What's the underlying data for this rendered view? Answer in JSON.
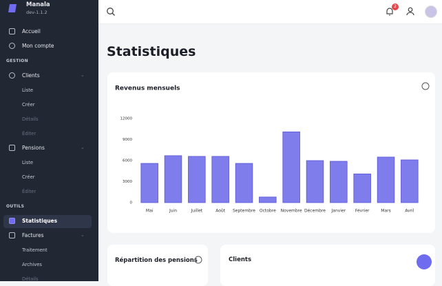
{
  "sidebar": {
    "app_name": "Manala",
    "version": "dev-1.1.2",
    "items": [
      "Accueil",
      "Mon compte"
    ],
    "gestion": {
      "heading": "GESTION",
      "groups": [
        {
          "label": "Clients",
          "children": [
            "Liste",
            "Créer",
            "Détails",
            "Éditer"
          ]
        },
        {
          "label": "Pensions",
          "children": [
            "Liste",
            "Créer",
            "Éditer"
          ]
        }
      ]
    },
    "outils": {
      "heading": "OUTILS",
      "items": [
        "Statistiques"
      ],
      "groups": [
        {
          "label": "Factures",
          "children": [
            "Traitement",
            "Archives",
            "Détails"
          ]
        }
      ]
    }
  },
  "header": {
    "notification_count": "2"
  },
  "page_title": "Statistiques",
  "cards": {
    "pensions": "Répartition des pensions",
    "clients": "Clients"
  },
  "chart_data": {
    "type": "bar",
    "title": "Revenus mensuels",
    "categories": [
      "Mai",
      "Juin",
      "Juillet",
      "Août",
      "Septembre",
      "Octobre",
      "Novembre",
      "Décembre",
      "Janvier",
      "Février",
      "Mars",
      "Avril"
    ],
    "values": [
      5600,
      6700,
      6600,
      6600,
      5600,
      800,
      10100,
      6000,
      5900,
      4100,
      6500,
      6100
    ],
    "color": "#7f7cec",
    "border_color": "#5b58d8",
    "ylim": [
      0,
      12000
    ],
    "yticks": [
      0,
      3000,
      6000,
      9000,
      12000
    ],
    "grid": false
  }
}
